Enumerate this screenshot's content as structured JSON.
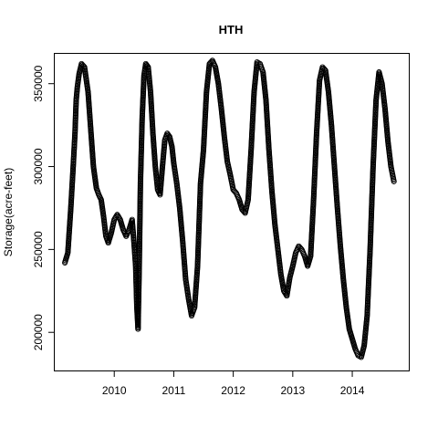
{
  "chart_data": {
    "type": "scatter",
    "title": "HTH",
    "xlabel": "",
    "ylabel": "Storage(acre-feet)",
    "x_unit": "year",
    "xlim": [
      2009.0,
      2014.95
    ],
    "ylim": [
      177000,
      368000
    ],
    "x_ticks": [
      {
        "value": 2010,
        "label": "2010"
      },
      {
        "value": 2011,
        "label": "2011"
      },
      {
        "value": 2012,
        "label": "2012"
      },
      {
        "value": 2013,
        "label": "2013"
      },
      {
        "value": 2014,
        "label": "2014"
      }
    ],
    "y_ticks": [
      {
        "value": 200000,
        "label": "200000"
      },
      {
        "value": 250000,
        "label": "250000"
      },
      {
        "value": 300000,
        "label": "300000"
      },
      {
        "value": 350000,
        "label": "350000"
      }
    ],
    "grid": false,
    "legend": "none",
    "marker": "open-circle",
    "series": [
      {
        "x": [
          2009.17,
          2009.22,
          2009.27,
          2009.31,
          2009.34,
          2009.36,
          2009.38,
          2009.41,
          2009.45,
          2009.5,
          2009.56,
          2009.61,
          2009.65,
          2009.7,
          2009.74,
          2009.78,
          2009.82,
          2009.86,
          2009.9,
          2009.95,
          2010.0,
          2010.05,
          2010.1,
          2010.15,
          2010.2,
          2010.25,
          2010.3,
          2010.33,
          2010.36,
          2010.38,
          2010.4,
          2010.42,
          2010.44,
          2010.47,
          2010.5,
          2010.53,
          2010.57,
          2010.61,
          2010.65,
          2010.69,
          2010.73,
          2010.77,
          2010.81,
          2010.85,
          2010.89,
          2010.93,
          2010.97,
          2011.0,
          2011.05,
          2011.1,
          2011.15,
          2011.2,
          2011.25,
          2011.3,
          2011.35,
          2011.4,
          2011.45,
          2011.5,
          2011.55,
          2011.6,
          2011.65,
          2011.7,
          2011.75,
          2011.8,
          2011.85,
          2011.9,
          2011.95,
          2012.0,
          2012.05,
          2012.1,
          2012.15,
          2012.2,
          2012.25,
          2012.3,
          2012.35,
          2012.4,
          2012.45,
          2012.5,
          2012.55,
          2012.6,
          2012.65,
          2012.7,
          2012.75,
          2012.8,
          2012.85,
          2012.9,
          2012.95,
          2013.0,
          2013.05,
          2013.1,
          2013.15,
          2013.2,
          2013.25,
          2013.3,
          2013.35,
          2013.4,
          2013.45,
          2013.5,
          2013.55,
          2013.6,
          2013.65,
          2013.7,
          2013.75,
          2013.8,
          2013.85,
          2013.9,
          2013.95,
          2014.0,
          2014.05,
          2014.1,
          2014.15,
          2014.2,
          2014.25,
          2014.3,
          2014.35,
          2014.4,
          2014.45,
          2014.5,
          2014.55,
          2014.6,
          2014.65,
          2014.7
        ],
        "y": [
          242000,
          248000,
          275000,
          300000,
          320000,
          340000,
          348000,
          356000,
          362000,
          360000,
          345000,
          320000,
          300000,
          287000,
          283000,
          280000,
          270000,
          258000,
          254000,
          260000,
          268000,
          271000,
          268000,
          262000,
          258000,
          262000,
          268000,
          255000,
          240000,
          215000,
          202000,
          240000,
          290000,
          330000,
          355000,
          362000,
          360000,
          345000,
          320000,
          300000,
          286000,
          283000,
          300000,
          316000,
          320000,
          318000,
          312000,
          302000,
          290000,
          275000,
          255000,
          232000,
          220000,
          210000,
          215000,
          240000,
          290000,
          310000,
          345000,
          362000,
          364000,
          360000,
          350000,
          335000,
          318000,
          303000,
          295000,
          286000,
          284000,
          280000,
          274000,
          272000,
          280000,
          310000,
          345000,
          363000,
          362000,
          357000,
          340000,
          310000,
          285000,
          265000,
          250000,
          235000,
          225000,
          222000,
          233000,
          240000,
          248000,
          252000,
          250000,
          246000,
          240000,
          246000,
          280000,
          320000,
          352000,
          360000,
          358000,
          345000,
          325000,
          300000,
          275000,
          252000,
          232000,
          215000,
          202000,
          196000,
          190000,
          186000,
          185000,
          192000,
          210000,
          250000,
          300000,
          340000,
          357000,
          350000,
          335000,
          315000,
          300000,
          291000
        ]
      }
    ]
  }
}
